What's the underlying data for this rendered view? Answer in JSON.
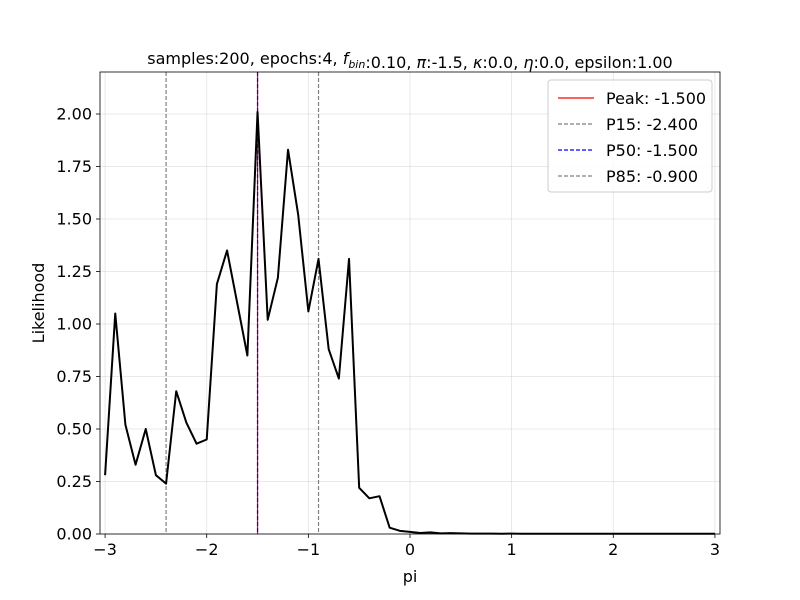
{
  "chart_data": {
    "type": "line",
    "title_parts": [
      {
        "text": "samples:200, epochs:4, ",
        "italic": false
      },
      {
        "text": "f",
        "italic": true
      },
      {
        "text": "bin",
        "italic": true,
        "sub": true
      },
      {
        "text": ":0.10, ",
        "italic": false
      },
      {
        "text": "π",
        "italic": true
      },
      {
        "text": ":-1.5, ",
        "italic": false
      },
      {
        "text": "κ",
        "italic": true
      },
      {
        "text": ":0.0, ",
        "italic": false
      },
      {
        "text": "η",
        "italic": true
      },
      {
        "text": ":0.0, epsilon:1.00",
        "italic": false
      }
    ],
    "xlabel": "pi",
    "ylabel": "Likelihood",
    "xlim": [
      -3.05,
      3.05
    ],
    "ylim": [
      0,
      2.2
    ],
    "xticks": [
      -3,
      -2,
      -1,
      0,
      1,
      2,
      3
    ],
    "xtick_labels": [
      "−3",
      "−2",
      "−1",
      "0",
      "1",
      "2",
      "3"
    ],
    "yticks": [
      0,
      0.25,
      0.5,
      0.75,
      1.0,
      1.25,
      1.5,
      1.75,
      2.0
    ],
    "ytick_labels": [
      "0.00",
      "0.25",
      "0.50",
      "0.75",
      "1.00",
      "1.25",
      "1.50",
      "1.75",
      "2.00"
    ],
    "grid": true,
    "legend_position": "top-right",
    "series": [
      {
        "color": "#000000",
        "x": [
          -3.0,
          -2.9,
          -2.8,
          -2.7,
          -2.6,
          -2.5,
          -2.4,
          -2.3,
          -2.2,
          -2.1,
          -2.0,
          -1.9,
          -1.8,
          -1.7,
          -1.6,
          -1.5,
          -1.4,
          -1.3,
          -1.2,
          -1.1,
          -1.0,
          -0.9,
          -0.8,
          -0.7,
          -0.6,
          -0.5,
          -0.4,
          -0.3,
          -0.2,
          -0.1,
          0.0,
          0.1,
          0.2,
          0.3,
          0.4,
          0.5,
          0.6,
          0.7,
          0.8,
          0.9,
          1.0,
          1.1,
          1.2,
          1.3,
          1.4,
          1.5,
          1.6,
          1.7,
          1.8,
          1.9,
          2.0,
          2.1,
          2.2,
          2.3,
          2.4,
          2.5,
          2.6,
          2.7,
          2.8,
          2.9,
          3.0
        ],
        "y": [
          0.28,
          1.05,
          0.52,
          0.33,
          0.5,
          0.28,
          0.24,
          0.68,
          0.53,
          0.43,
          0.45,
          1.19,
          1.35,
          1.1,
          0.85,
          2.01,
          1.02,
          1.22,
          1.83,
          1.52,
          1.06,
          1.31,
          0.88,
          0.74,
          1.31,
          0.22,
          0.17,
          0.18,
          0.03,
          0.015,
          0.01,
          0.005,
          0.008,
          0.003,
          0.004,
          0.003,
          0.002,
          0.002,
          0.002,
          0.001,
          0.002,
          0.001,
          0.001,
          0.001,
          0.001,
          0.001,
          0.001,
          0.001,
          0.001,
          0.001,
          0.001,
          0.001,
          0.001,
          0.001,
          0.001,
          0.001,
          0.001,
          0.001,
          0.001,
          0.001,
          0.001
        ]
      }
    ],
    "vlines": [
      {
        "name": "peak",
        "x": -1.5,
        "color": "#ff0000",
        "style": "solid",
        "label": "Peak: -1.500"
      },
      {
        "name": "p15",
        "x": -2.4,
        "color": "#808080",
        "style": "dashed",
        "label": "P15: -2.400"
      },
      {
        "name": "p50",
        "x": -1.5,
        "color": "#0000ff",
        "style": "dashed",
        "label": "P50: -1.500"
      },
      {
        "name": "p85",
        "x": -0.9,
        "color": "#808080",
        "style": "dashed",
        "label": "P85: -0.900"
      }
    ]
  }
}
